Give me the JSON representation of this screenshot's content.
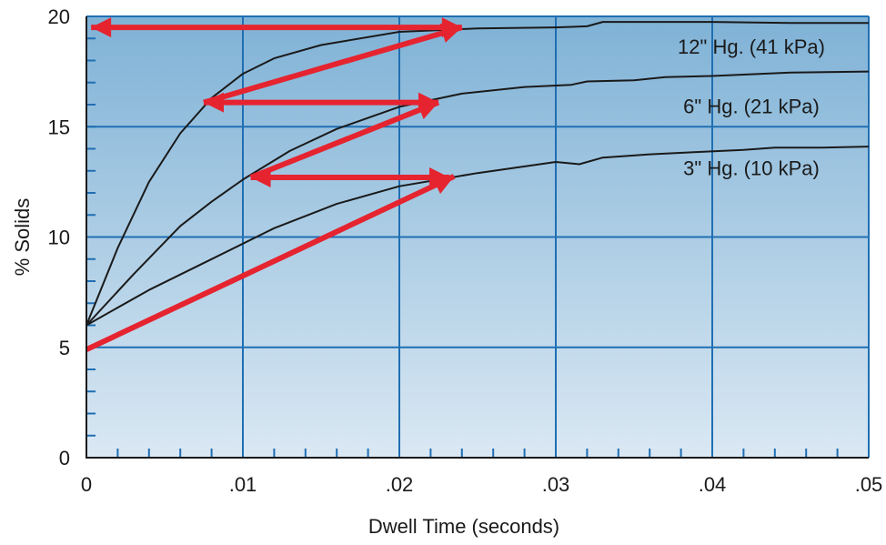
{
  "chart_data": {
    "type": "line",
    "title": "",
    "xlabel": "Dwell Time (seconds)",
    "ylabel": "% Solids",
    "xlim": [
      0,
      0.05
    ],
    "ylim": [
      0,
      20
    ],
    "x_ticks": [
      0,
      0.01,
      0.02,
      0.03,
      0.04,
      0.05
    ],
    "x_tick_labels": [
      "0",
      ".01",
      ".02",
      ".03",
      ".04",
      ".05"
    ],
    "y_ticks": [
      0,
      5,
      10,
      15,
      20
    ],
    "y_tick_labels": [
      "0",
      "5",
      "10",
      "15",
      "20"
    ],
    "grid": true,
    "background_gradient": [
      "#7fb2d6",
      "#dae8f3"
    ],
    "grid_color": "#1f6fb3",
    "series": [
      {
        "name": "12\" Hg. (41 kPa)",
        "color": "#1a1a1a",
        "points": [
          [
            0,
            6.0
          ],
          [
            0.002,
            9.5
          ],
          [
            0.004,
            12.5
          ],
          [
            0.006,
            14.7
          ],
          [
            0.008,
            16.3
          ],
          [
            0.01,
            17.4
          ],
          [
            0.012,
            18.1
          ],
          [
            0.015,
            18.7
          ],
          [
            0.02,
            19.3
          ],
          [
            0.025,
            19.45
          ],
          [
            0.03,
            19.5
          ],
          [
            0.032,
            19.55
          ],
          [
            0.033,
            19.75
          ],
          [
            0.04,
            19.75
          ],
          [
            0.045,
            19.7
          ],
          [
            0.05,
            19.7
          ]
        ],
        "label_at": [
          0.0425,
          18.3
        ]
      },
      {
        "name": "6\" Hg. (21 kPa)",
        "color": "#1a1a1a",
        "points": [
          [
            0,
            6.0
          ],
          [
            0.003,
            8.3
          ],
          [
            0.006,
            10.5
          ],
          [
            0.008,
            11.6
          ],
          [
            0.01,
            12.6
          ],
          [
            0.013,
            13.9
          ],
          [
            0.016,
            14.9
          ],
          [
            0.02,
            15.9
          ],
          [
            0.024,
            16.5
          ],
          [
            0.028,
            16.8
          ],
          [
            0.031,
            16.9
          ],
          [
            0.032,
            17.05
          ],
          [
            0.035,
            17.1
          ],
          [
            0.037,
            17.25
          ],
          [
            0.04,
            17.3
          ],
          [
            0.045,
            17.45
          ],
          [
            0.05,
            17.5
          ]
        ],
        "label_at": [
          0.0425,
          15.6
        ]
      },
      {
        "name": "3\" Hg. (10 kPa)",
        "color": "#1a1a1a",
        "points": [
          [
            0,
            6.0
          ],
          [
            0.004,
            7.6
          ],
          [
            0.008,
            9.0
          ],
          [
            0.012,
            10.4
          ],
          [
            0.016,
            11.5
          ],
          [
            0.02,
            12.3
          ],
          [
            0.025,
            12.9
          ],
          [
            0.03,
            13.4
          ],
          [
            0.0315,
            13.3
          ],
          [
            0.033,
            13.6
          ],
          [
            0.036,
            13.75
          ],
          [
            0.039,
            13.85
          ],
          [
            0.042,
            13.95
          ],
          [
            0.044,
            14.05
          ],
          [
            0.047,
            14.05
          ],
          [
            0.05,
            14.1
          ]
        ],
        "label_at": [
          0.0425,
          12.8
        ]
      }
    ],
    "annotations": {
      "arrow_color": "#e52430",
      "arrows": [
        {
          "from": [
            0,
            4.9
          ],
          "to": [
            0.0235,
            12.75
          ],
          "heads": "end"
        },
        {
          "from": [
            0.0105,
            12.7
          ],
          "to": [
            0.0232,
            12.7
          ],
          "heads": "both"
        },
        {
          "from": [
            0.0105,
            12.7
          ],
          "to": [
            0.0225,
            16.1
          ],
          "heads": "end"
        },
        {
          "from": [
            0.0075,
            16.1
          ],
          "to": [
            0.0225,
            16.1
          ],
          "heads": "both"
        },
        {
          "from": [
            0.0075,
            16.1
          ],
          "to": [
            0.024,
            19.5
          ],
          "heads": "end"
        },
        {
          "from": [
            0.0003,
            19.5
          ],
          "to": [
            0.024,
            19.5
          ],
          "heads": "both"
        }
      ]
    }
  }
}
